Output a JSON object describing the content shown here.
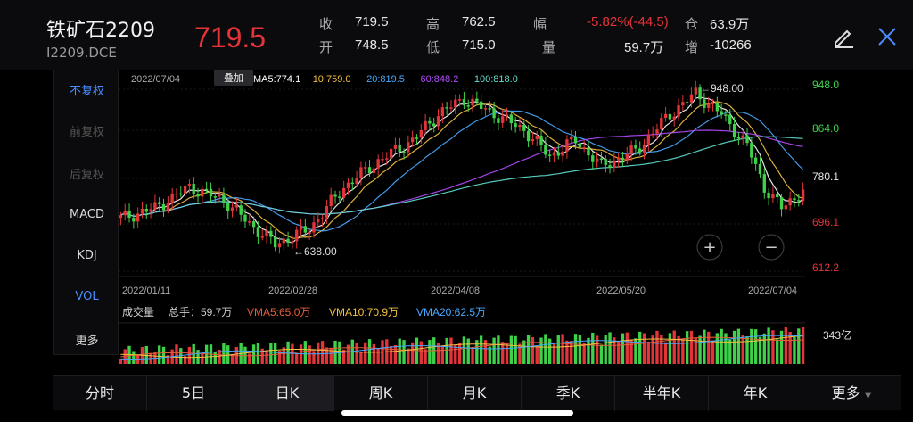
{
  "header": {
    "title": "铁矿石2209",
    "code": "I2209.DCE",
    "price": "719.5",
    "quote": {
      "close_label": "收",
      "close_value": "719.5",
      "open_label": "开",
      "open_value": "748.5",
      "high_label": "高",
      "high_value": "762.5",
      "low_label": "低",
      "low_value": "715.0",
      "range_label": "幅",
      "range_value": "-5.82%(-44.5)",
      "volume_label": "量",
      "volume_value": "59.7万",
      "oi_label": "仓",
      "oi_value": "63.9万",
      "oi_change_label": "增",
      "oi_change_value": "-10266"
    },
    "edit_icon": "pencil-icon",
    "close_icon": "close-icon"
  },
  "sidebar": {
    "items": [
      {
        "label": "不复权",
        "state": "active"
      },
      {
        "label": "前复权",
        "state": "dim"
      },
      {
        "label": "后复权",
        "state": "dim"
      },
      {
        "label": "MACD",
        "state": "normal"
      },
      {
        "label": "KDJ",
        "state": "normal"
      },
      {
        "label": "VOL",
        "state": "active"
      },
      {
        "label": "更多",
        "state": "normal"
      }
    ]
  },
  "chart": {
    "date": "2022/07/04",
    "overlay_button": "叠加",
    "ma_legend": [
      {
        "label": "MA5:774.1",
        "color": "#ffffff"
      },
      {
        "label": "10:759.0",
        "color": "#f5c242"
      },
      {
        "label": "20:819.5",
        "color": "#4aa8ff"
      },
      {
        "label": "60:848.2",
        "color": "#b44bff"
      },
      {
        "label": "100:818.0",
        "color": "#5fe0d0"
      }
    ],
    "high_marker": "948.00",
    "low_marker": "638.00",
    "price_axis": [
      {
        "label": "948.0",
        "color": "#3fd14a"
      },
      {
        "label": "864.0",
        "color": "#3fd14a"
      },
      {
        "label": "780.1",
        "color": "#e8e8e8"
      },
      {
        "label": "696.1",
        "color": "#e3343a"
      },
      {
        "label": "612.2",
        "color": "#e3343a"
      }
    ],
    "date_axis": [
      "2022/01/11",
      "2022/02/28",
      "2022/04/08",
      "2022/05/20",
      "2022/07/04"
    ],
    "zoom_in": "+",
    "zoom_out": "−",
    "volume_legend": {
      "title": "成交量",
      "total": "总手：59.7万",
      "vma5": "VMA5:65.0万",
      "vma10": "VMA10:70.9万",
      "vma20": "VMA20:62.5万"
    },
    "volume_axis": "343亿",
    "colors": {
      "up": "#e3343a",
      "down": "#3fd14a"
    }
  },
  "tabs": [
    {
      "label": "分时",
      "active": false
    },
    {
      "label": "5日",
      "active": false
    },
    {
      "label": "日K",
      "active": true
    },
    {
      "label": "周K",
      "active": false
    },
    {
      "label": "月K",
      "active": false
    },
    {
      "label": "季K",
      "active": false
    },
    {
      "label": "半年K",
      "active": false
    },
    {
      "label": "年K",
      "active": false
    },
    {
      "label": "更多",
      "active": false
    }
  ]
}
